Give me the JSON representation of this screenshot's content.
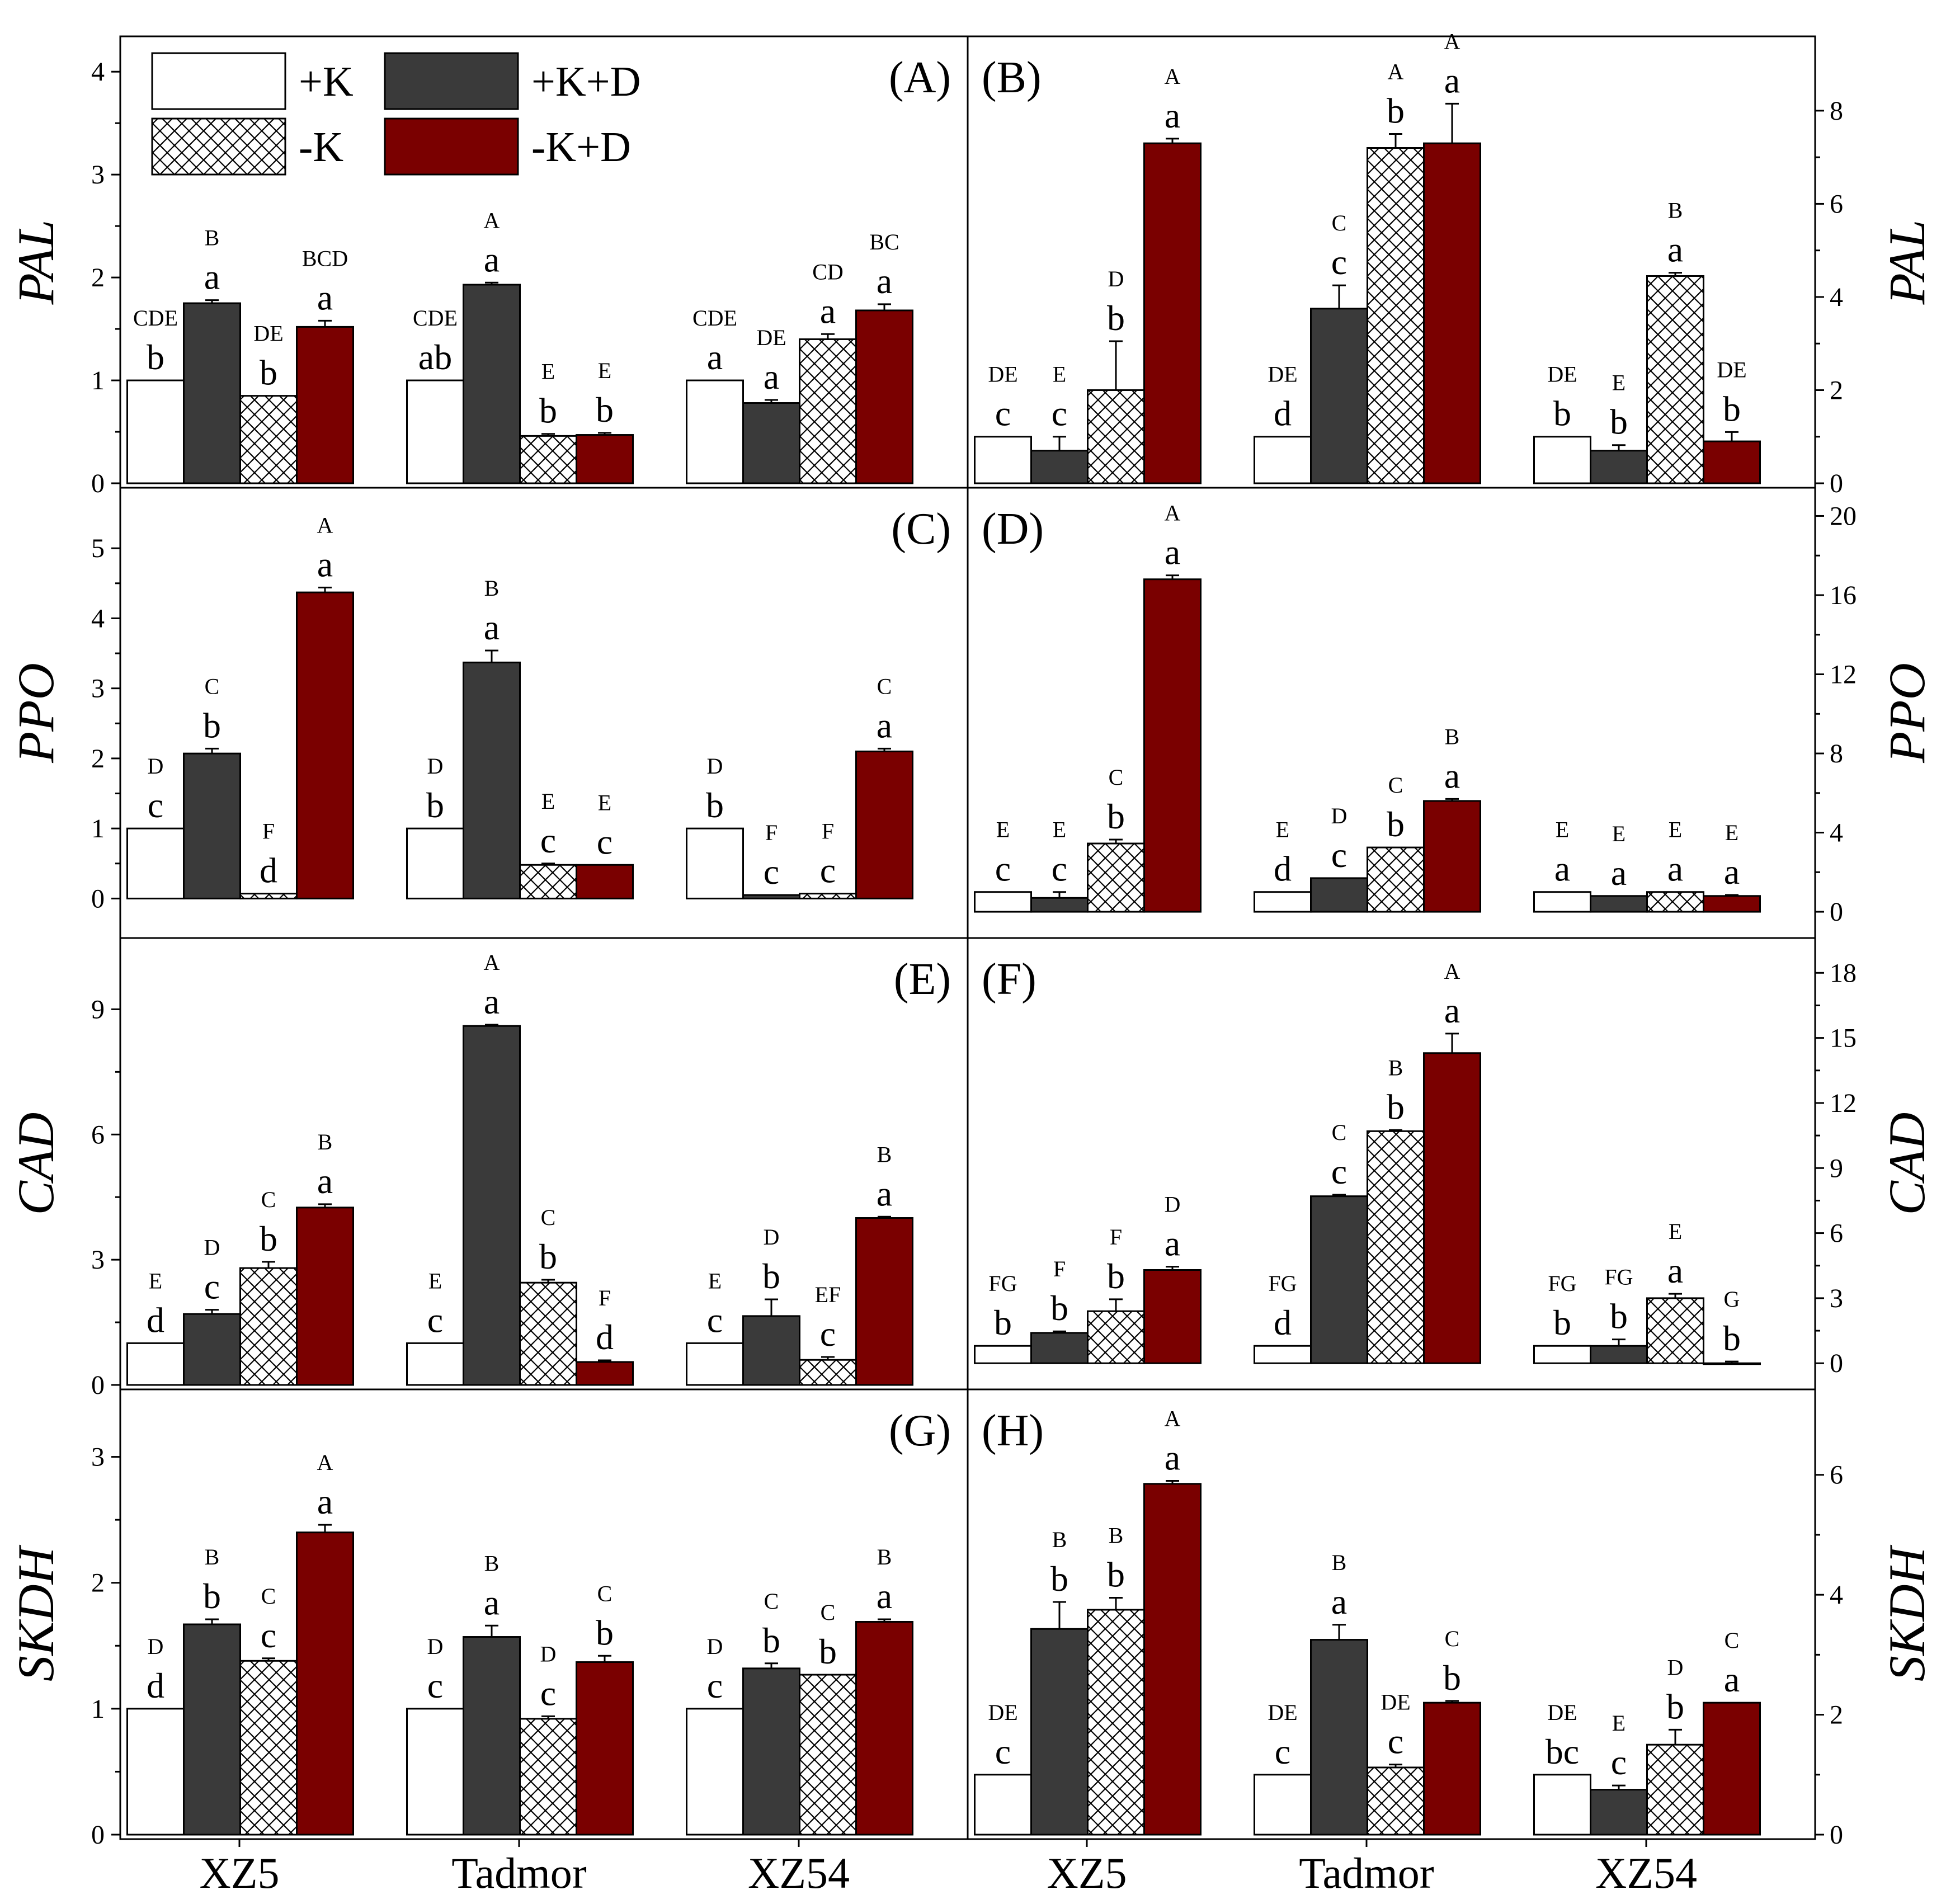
{
  "figure": {
    "categories": [
      "XZ5",
      "Tadmor",
      "XZ54"
    ],
    "colors": {
      "plusK": "#ffffff",
      "plusKD": "#3a3a3a",
      "minusK": "#ffffff",
      "minusKD": "#7a0000",
      "axis": "#000000"
    },
    "legend": [
      {
        "key": "plusK",
        "label": "+K",
        "style": "white"
      },
      {
        "key": "plusKD",
        "label": "+K+D",
        "style": "dark"
      },
      {
        "key": "minusK",
        "label": "-K",
        "style": "hatch"
      },
      {
        "key": "minusKD",
        "label": "-K+D",
        "style": "red"
      }
    ]
  },
  "chart_data": [
    {
      "type": "bar",
      "panel": "(A)",
      "ylabel": "PAL",
      "ylim": [
        0,
        4.3
      ],
      "ticks": [
        0,
        1,
        2,
        3,
        4
      ],
      "tick_labels": [
        "0",
        "1",
        "2",
        "3",
        "4"
      ],
      "categories": [
        "XZ5",
        "Tadmor",
        "XZ54"
      ],
      "series": [
        {
          "name": "+K",
          "values": [
            1.0,
            1.0,
            1.0
          ],
          "errors": [
            0,
            0,
            0
          ],
          "upper": [
            "CDE",
            "CDE",
            "CDE"
          ],
          "lower": [
            "b",
            "ab",
            "a"
          ]
        },
        {
          "name": "+K+D",
          "values": [
            1.75,
            1.93,
            0.78
          ],
          "errors": [
            0.03,
            0.02,
            0.03
          ],
          "upper": [
            "B",
            "A",
            "DE"
          ],
          "lower": [
            "a",
            "a",
            "a"
          ]
        },
        {
          "name": "-K",
          "values": [
            0.85,
            0.46,
            1.4
          ],
          "errors": [
            0,
            0.02,
            0.05
          ],
          "upper": [
            "DE",
            "E",
            "CD"
          ],
          "lower": [
            "b",
            "b",
            "a"
          ]
        },
        {
          "name": "-K+D",
          "values": [
            1.52,
            0.47,
            1.68
          ],
          "errors": [
            0.06,
            0.02,
            0.06
          ],
          "upper": [
            "BCD",
            "E",
            "BC"
          ],
          "lower": [
            "a",
            "b",
            "a"
          ]
        }
      ]
    },
    {
      "type": "bar",
      "panel": "(B)",
      "ylabel": "PAL",
      "ylim": [
        0,
        9.5
      ],
      "ticks": [
        0,
        2,
        4,
        6,
        8
      ],
      "tick_labels": [
        "0",
        "2",
        "4",
        "6",
        "8"
      ],
      "categories": [
        "XZ5",
        "Tadmor",
        "XZ54"
      ],
      "series": [
        {
          "name": "+K",
          "values": [
            1.0,
            1.0,
            1.0
          ],
          "errors": [
            0,
            0,
            0
          ],
          "upper": [
            "DE",
            "DE",
            "DE"
          ],
          "lower": [
            "c",
            "d",
            "b"
          ]
        },
        {
          "name": "+K+D",
          "values": [
            0.7,
            3.75,
            0.7
          ],
          "errors": [
            0.3,
            0.5,
            0.12
          ],
          "upper": [
            "E",
            "C",
            "E"
          ],
          "lower": [
            "c",
            "c",
            "b"
          ]
        },
        {
          "name": "-K",
          "values": [
            2.0,
            7.2,
            4.45
          ],
          "errors": [
            1.05,
            0.3,
            0.07
          ],
          "upper": [
            "D",
            "A",
            "B"
          ],
          "lower": [
            "b",
            "b",
            "a"
          ]
        },
        {
          "name": "-K+D",
          "values": [
            7.3,
            7.3,
            0.9
          ],
          "errors": [
            0.1,
            0.85,
            0.2
          ],
          "upper": [
            "A",
            "A",
            "DE"
          ],
          "lower": [
            "a",
            "a",
            "b"
          ]
        }
      ]
    },
    {
      "type": "bar",
      "panel": "(C)",
      "ylabel": "PPO",
      "ylim": [
        -0.5,
        5.8
      ],
      "ticks": [
        0,
        1,
        2,
        3,
        4,
        5
      ],
      "tick_labels": [
        "0",
        "1",
        "2",
        "3",
        "4",
        "5"
      ],
      "categories": [
        "XZ5",
        "Tadmor",
        "XZ54"
      ],
      "series": [
        {
          "name": "+K",
          "values": [
            1.0,
            1.0,
            1.0
          ],
          "errors": [
            0,
            0,
            0
          ],
          "upper": [
            "D",
            "D",
            "D"
          ],
          "lower": [
            "c",
            "b",
            "b"
          ]
        },
        {
          "name": "+K+D",
          "values": [
            2.07,
            3.37,
            0.05
          ],
          "errors": [
            0.07,
            0.17,
            0
          ],
          "upper": [
            "C",
            "B",
            "F"
          ],
          "lower": [
            "b",
            "a",
            "c"
          ]
        },
        {
          "name": "-K",
          "values": [
            0.07,
            0.48,
            0.07
          ],
          "errors": [
            0,
            0.02,
            0
          ],
          "upper": [
            "F",
            "E",
            "F"
          ],
          "lower": [
            "d",
            "c",
            "c"
          ]
        },
        {
          "name": "-K+D",
          "values": [
            4.37,
            0.48,
            2.1
          ],
          "errors": [
            0.07,
            0,
            0.04
          ],
          "upper": [
            "A",
            "E",
            "C"
          ],
          "lower": [
            "a",
            "c",
            "a"
          ]
        }
      ]
    },
    {
      "type": "bar",
      "panel": "(D)",
      "ylabel": "PPO",
      "ylim": [
        -1.1,
        21.2
      ],
      "ticks": [
        0,
        4,
        8,
        12,
        16,
        20
      ],
      "tick_labels": [
        "0",
        "4",
        "8",
        "12",
        "16",
        "20"
      ],
      "categories": [
        "XZ5",
        "Tadmor",
        "XZ54"
      ],
      "series": [
        {
          "name": "+K",
          "values": [
            1.0,
            1.0,
            1.0
          ],
          "errors": [
            0,
            0,
            0
          ],
          "upper": [
            "E",
            "E",
            "E"
          ],
          "lower": [
            "c",
            "d",
            "a"
          ]
        },
        {
          "name": "+K+D",
          "values": [
            0.7,
            1.7,
            0.8
          ],
          "errors": [
            0.3,
            0,
            0
          ],
          "upper": [
            "E",
            "D",
            "E"
          ],
          "lower": [
            "c",
            "c",
            "a"
          ]
        },
        {
          "name": "-K",
          "values": [
            3.45,
            3.25,
            1.0
          ],
          "errors": [
            0.2,
            0,
            0
          ],
          "upper": [
            "C",
            "C",
            "E"
          ],
          "lower": [
            "b",
            "b",
            "a"
          ]
        },
        {
          "name": "-K+D",
          "values": [
            16.8,
            5.6,
            0.8
          ],
          "errors": [
            0.2,
            0.1,
            0.05
          ],
          "upper": [
            "A",
            "B",
            "E"
          ],
          "lower": [
            "a",
            "a",
            "a"
          ]
        }
      ]
    },
    {
      "type": "bar",
      "panel": "(E)",
      "ylabel": "CAD",
      "ylim": [
        0,
        10.6
      ],
      "ticks": [
        0,
        3,
        6,
        9
      ],
      "tick_labels": [
        "0",
        "3",
        "6",
        "9"
      ],
      "categories": [
        "XZ5",
        "Tadmor",
        "XZ54"
      ],
      "series": [
        {
          "name": "+K",
          "values": [
            1.0,
            1.0,
            1.0
          ],
          "errors": [
            0,
            0,
            0
          ],
          "upper": [
            "E",
            "E",
            "E"
          ],
          "lower": [
            "d",
            "c",
            "c"
          ]
        },
        {
          "name": "+K+D",
          "values": [
            1.7,
            8.6,
            1.65
          ],
          "errors": [
            0.1,
            0.03,
            0.4
          ],
          "upper": [
            "D",
            "A",
            "D"
          ],
          "lower": [
            "c",
            "a",
            "b"
          ]
        },
        {
          "name": "-K",
          "values": [
            2.8,
            2.45,
            0.6
          ],
          "errors": [
            0.15,
            0.07,
            0.07
          ],
          "upper": [
            "C",
            "C",
            "EF"
          ],
          "lower": [
            "b",
            "b",
            "c"
          ]
        },
        {
          "name": "-K+D",
          "values": [
            4.25,
            0.55,
            4.0
          ],
          "errors": [
            0.08,
            0.04,
            0.03
          ],
          "upper": [
            "B",
            "F",
            "B"
          ],
          "lower": [
            "a",
            "d",
            "a"
          ]
        }
      ]
    },
    {
      "type": "bar",
      "panel": "(F)",
      "ylabel": "CAD",
      "ylim": [
        -1,
        19.4
      ],
      "ticks": [
        0,
        3,
        6,
        9,
        12,
        15,
        18
      ],
      "tick_labels": [
        "0",
        "3",
        "6",
        "9",
        "12",
        "15",
        "18"
      ],
      "categories": [
        "XZ5",
        "Tadmor",
        "XZ54"
      ],
      "series": [
        {
          "name": "+K",
          "values": [
            0.8,
            0.8,
            0.8
          ],
          "errors": [
            0,
            0,
            0
          ],
          "upper": [
            "FG",
            "FG",
            "FG"
          ],
          "lower": [
            "b",
            "d",
            "b"
          ]
        },
        {
          "name": "+K+D",
          "values": [
            1.4,
            7.7,
            0.8
          ],
          "errors": [
            0.07,
            0.07,
            0.3
          ],
          "upper": [
            "F",
            "C",
            "FG"
          ],
          "lower": [
            "b",
            "c",
            "b"
          ]
        },
        {
          "name": "-K",
          "values": [
            2.4,
            10.7,
            3.0
          ],
          "errors": [
            0.55,
            0.05,
            0.2
          ],
          "upper": [
            "F",
            "B",
            "E"
          ],
          "lower": [
            "b",
            "b",
            "a"
          ]
        },
        {
          "name": "-K+D",
          "values": [
            4.3,
            14.3,
            0.0
          ],
          "errors": [
            0.15,
            0.9,
            0.08
          ],
          "upper": [
            "D",
            "A",
            "G"
          ],
          "lower": [
            "a",
            "a",
            "b"
          ]
        }
      ]
    },
    {
      "type": "bar",
      "panel": "(G)",
      "ylabel": "SKDH",
      "ylim": [
        0,
        3.5
      ],
      "ticks": [
        0,
        1,
        2,
        3
      ],
      "tick_labels": [
        "0",
        "1",
        "2",
        "3"
      ],
      "categories": [
        "XZ5",
        "Tadmor",
        "XZ54"
      ],
      "series": [
        {
          "name": "+K",
          "values": [
            1.0,
            1.0,
            1.0
          ],
          "errors": [
            0,
            0,
            0
          ],
          "upper": [
            "D",
            "D",
            "D"
          ],
          "lower": [
            "d",
            "c",
            "c"
          ]
        },
        {
          "name": "+K+D",
          "values": [
            1.67,
            1.57,
            1.32
          ],
          "errors": [
            0.04,
            0.09,
            0.04
          ],
          "upper": [
            "B",
            "B",
            "C"
          ],
          "lower": [
            "b",
            "a",
            "b"
          ]
        },
        {
          "name": "-K",
          "values": [
            1.38,
            0.92,
            1.27
          ],
          "errors": [
            0.02,
            0.02,
            0
          ],
          "upper": [
            "C",
            "D",
            "C"
          ],
          "lower": [
            "c",
            "c",
            "b"
          ]
        },
        {
          "name": "-K+D",
          "values": [
            2.4,
            1.37,
            1.69
          ],
          "errors": [
            0.06,
            0.05,
            0.02
          ],
          "upper": [
            "A",
            "C",
            "B"
          ],
          "lower": [
            "a",
            "b",
            "a"
          ]
        }
      ]
    },
    {
      "type": "bar",
      "panel": "(H)",
      "ylabel": "SKDH",
      "ylim": [
        0,
        7.35
      ],
      "ticks": [
        0,
        2,
        4,
        6
      ],
      "tick_labels": [
        "0",
        "2",
        "4",
        "6"
      ],
      "categories": [
        "XZ5",
        "Tadmor",
        "XZ54"
      ],
      "series": [
        {
          "name": "+K",
          "values": [
            1.0,
            1.0,
            1.0
          ],
          "errors": [
            0,
            0,
            0
          ],
          "upper": [
            "DE",
            "DE",
            "DE"
          ],
          "lower": [
            "c",
            "c",
            "bc"
          ]
        },
        {
          "name": "+K+D",
          "values": [
            3.43,
            3.25,
            0.75
          ],
          "errors": [
            0.45,
            0.25,
            0.07
          ],
          "upper": [
            "B",
            "B",
            "E"
          ],
          "lower": [
            "b",
            "a",
            "c"
          ]
        },
        {
          "name": "-K",
          "values": [
            3.75,
            1.12,
            1.5
          ],
          "errors": [
            0.2,
            0.05,
            0.25
          ],
          "upper": [
            "B",
            "DE",
            "D"
          ],
          "lower": [
            "b",
            "c",
            "b"
          ]
        },
        {
          "name": "-K+D",
          "values": [
            5.85,
            2.2,
            2.2
          ],
          "errors": [
            0.05,
            0.03,
            0
          ],
          "upper": [
            "A",
            "C",
            "C"
          ],
          "lower": [
            "a",
            "b",
            "a"
          ]
        }
      ]
    }
  ]
}
